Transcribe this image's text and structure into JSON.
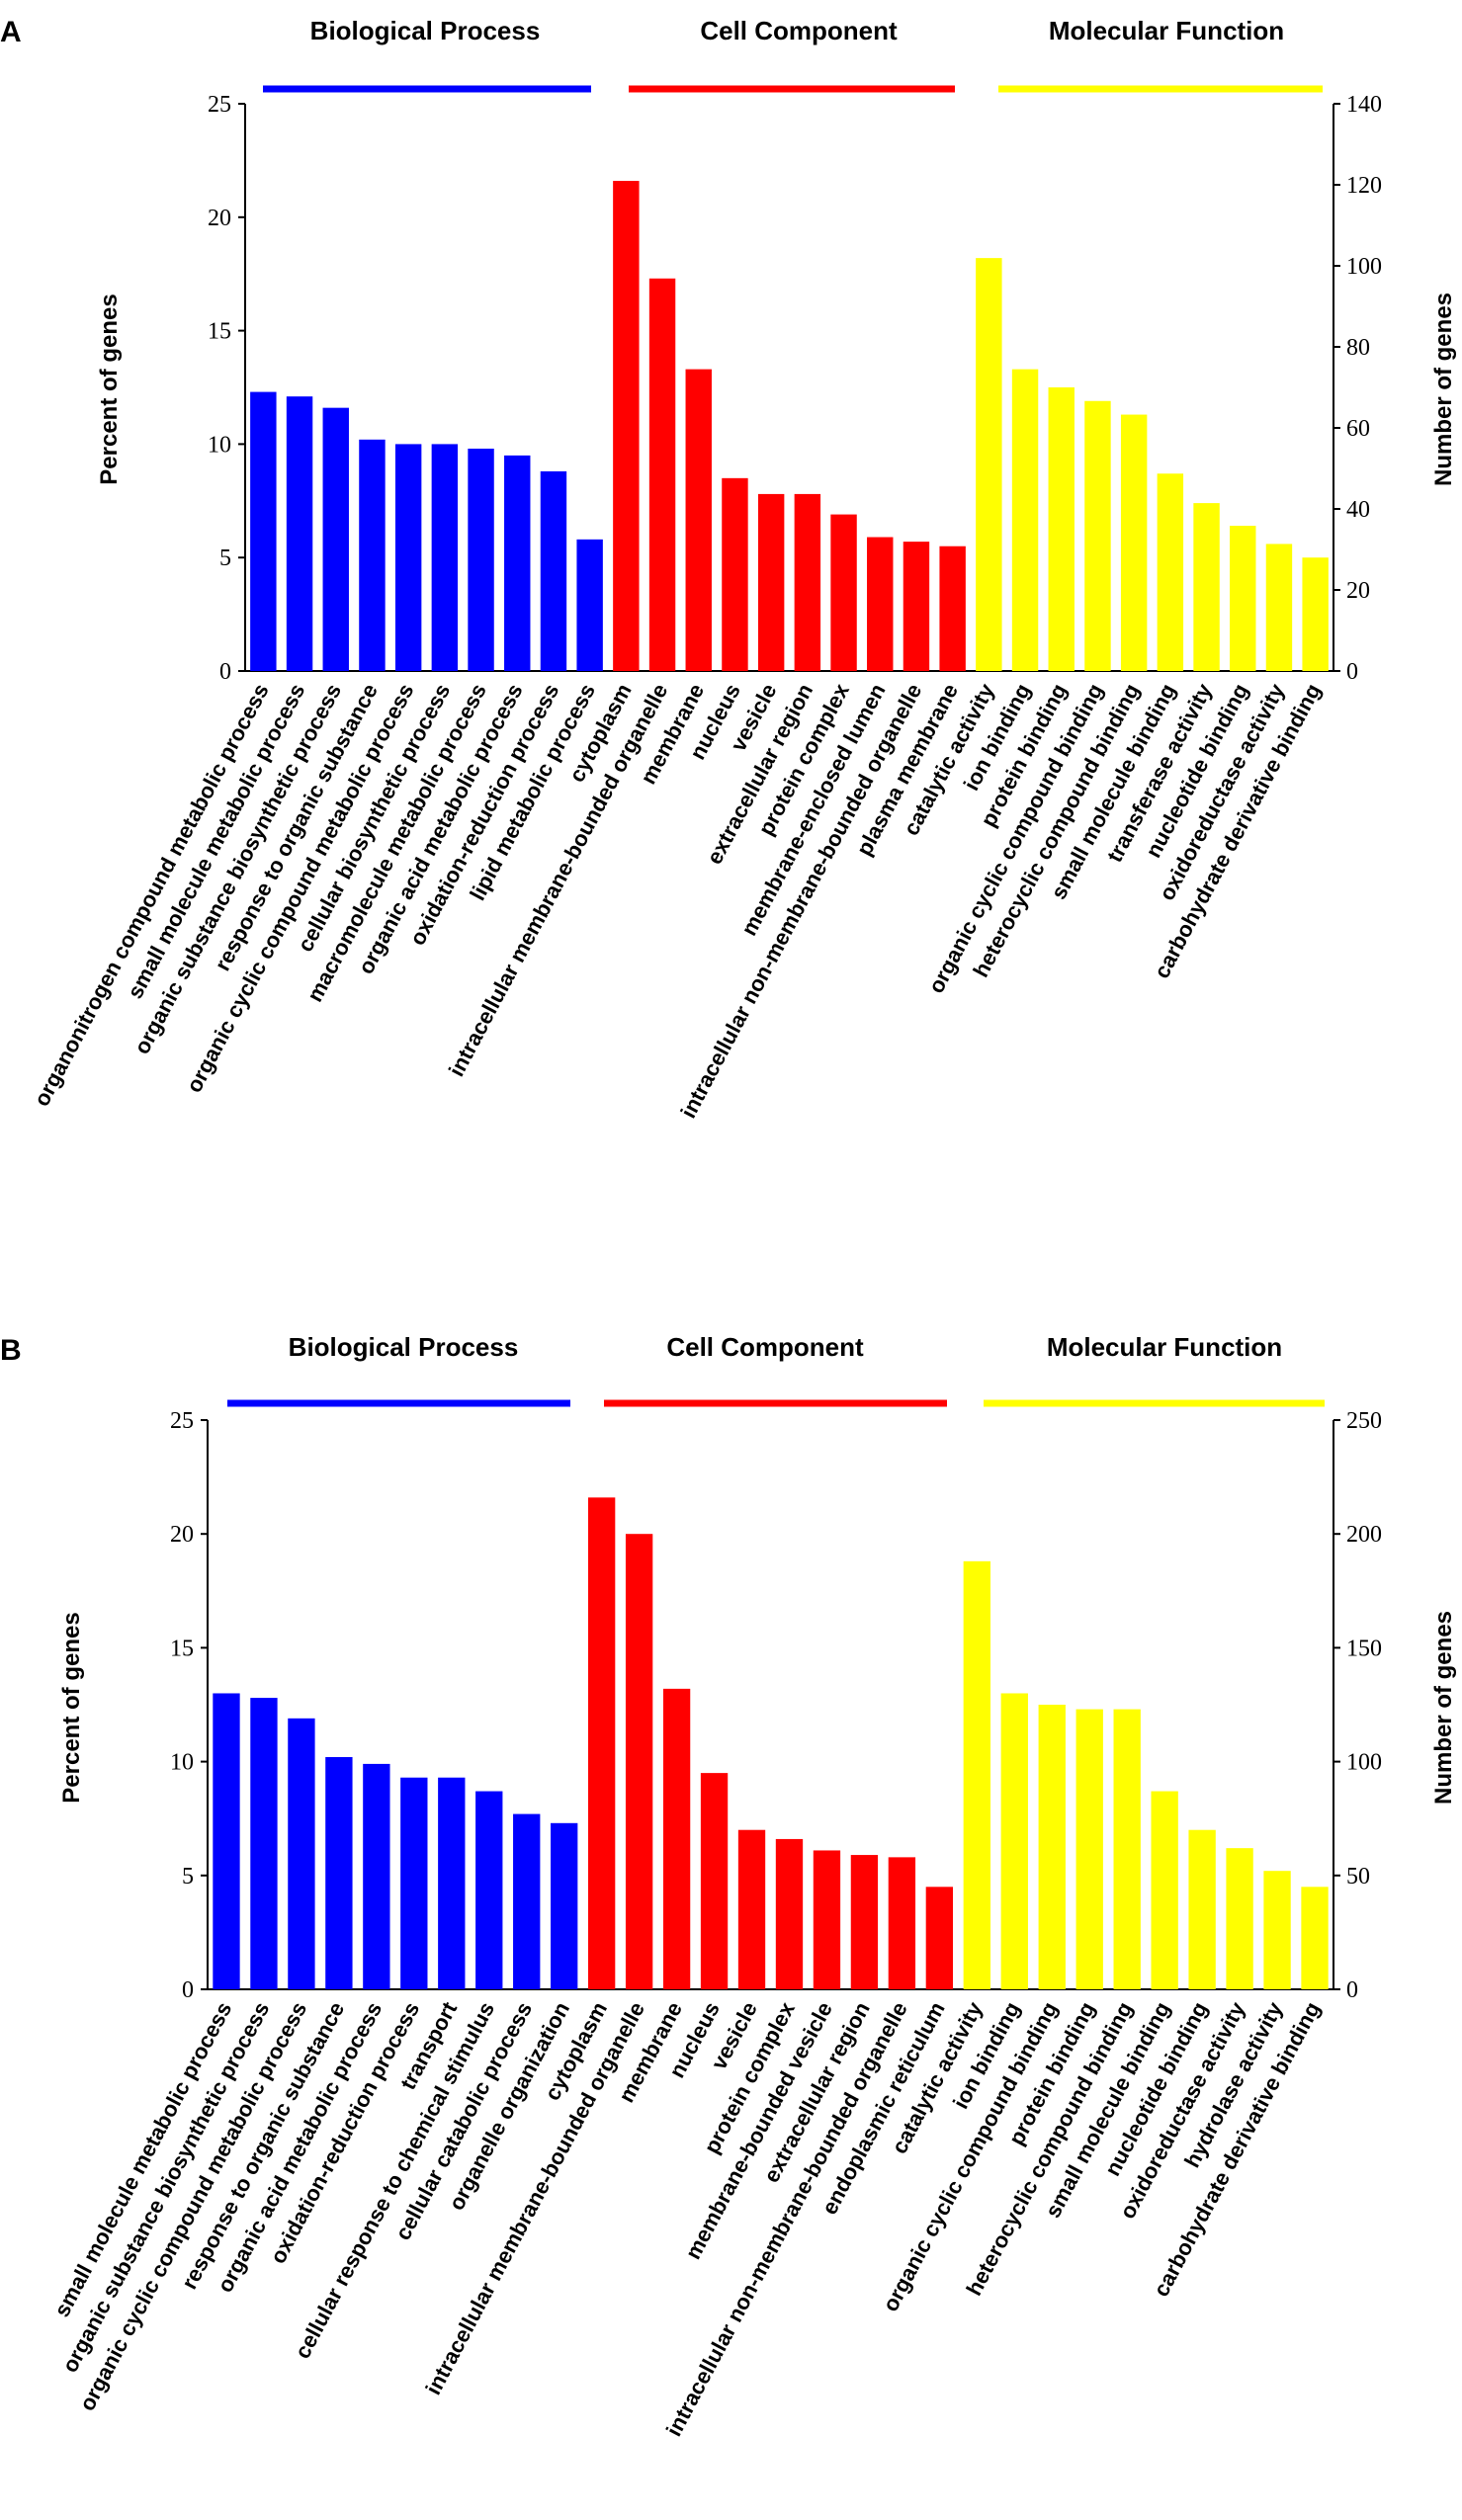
{
  "colors": {
    "biological_process": "#0000ff",
    "cell_component": "#ff0000",
    "molecular_function": "#ffff00"
  },
  "chart_data": [
    {
      "panel": "A",
      "type": "bar",
      "group_labels": [
        "Biological Process",
        "Cell Component",
        "Molecular Function"
      ],
      "ylabel_left": "Percent of genes",
      "ylabel_right": "Number of genes",
      "ylim_left": [
        0,
        25
      ],
      "ylim_right": [
        0,
        140
      ],
      "yticks_left": [
        "0",
        "5",
        "10",
        "15",
        "20",
        "25"
      ],
      "yticks_right": [
        "0",
        "20",
        "40",
        "60",
        "80",
        "100",
        "120",
        "140"
      ],
      "groups": [
        {
          "name": "Biological Process",
          "color_key": "biological_process",
          "categories": [
            "organonitrogen compound metabolic process",
            "small molecule metabolic process",
            "organic substance biosynthetic process",
            "response to organic substance",
            "organic cyclic compound metabolic process",
            "cellular biosynthetic process",
            "macromolecule metabolic process",
            "organic acid metabolic process",
            "oxidation-reduction process",
            "lipid metabolic process"
          ],
          "values": [
            12.3,
            12.1,
            11.6,
            10.2,
            10.0,
            10.0,
            9.8,
            9.5,
            8.8,
            5.8
          ]
        },
        {
          "name": "Cell Component",
          "color_key": "cell_component",
          "categories": [
            "cytoplasm",
            "intracellular membrane-bounded organelle",
            "membrane",
            "nucleus",
            "vesicle",
            "extracellular region",
            "protein complex",
            "membrane-enclosed lumen",
            "intracellular non-membrane-bounded organelle",
            "plasma membrane"
          ],
          "values": [
            21.6,
            17.3,
            13.3,
            8.5,
            7.8,
            7.8,
            6.9,
            5.9,
            5.7,
            5.5
          ]
        },
        {
          "name": "Molecular Function",
          "color_key": "molecular_function",
          "categories": [
            "catalytic activity",
            "ion binding",
            "protein binding",
            "organic cyclic compound binding",
            "heterocyclic compound binding",
            "small molecule binding",
            "transferase activity",
            "nucleotide binding",
            "oxidoreductase activity",
            "carbohydrate derivative binding"
          ],
          "values": [
            18.2,
            13.3,
            12.5,
            11.9,
            11.3,
            8.7,
            7.4,
            6.4,
            5.6,
            5.0
          ]
        }
      ]
    },
    {
      "panel": "B",
      "type": "bar",
      "group_labels": [
        "Biological Process",
        "Cell Component",
        "Molecular Function"
      ],
      "ylabel_left": "Percent of genes",
      "ylabel_right": "Number of genes",
      "ylim_left": [
        0,
        25
      ],
      "ylim_right": [
        0,
        250
      ],
      "yticks_left": [
        "0",
        "5",
        "10",
        "15",
        "20",
        "25"
      ],
      "yticks_right": [
        "0",
        "50",
        "100",
        "150",
        "200",
        "250"
      ],
      "groups": [
        {
          "name": "Biological Process",
          "color_key": "biological_process",
          "categories": [
            "small molecule metabolic process",
            "organic substance biosynthetic process",
            "organic cyclic compound metabolic process",
            "response to organic substance",
            "organic acid metabolic process",
            "oxidation-reduction process",
            "transport",
            "cellular response to chemical stimulus",
            "cellular catabolic process",
            "organelle organization"
          ],
          "values": [
            13.0,
            12.8,
            11.9,
            10.2,
            9.9,
            9.3,
            9.3,
            8.7,
            7.7,
            7.3
          ]
        },
        {
          "name": "Cell Component",
          "color_key": "cell_component",
          "categories": [
            "cytoplasm",
            "intracellular membrane-bounded organelle",
            "membrane",
            "nucleus",
            "vesicle",
            "protein complex",
            "membrane-bounded vesicle",
            "extracellular region",
            "intracellular non-membrane-bounded organelle",
            "endoplasmic reticulum"
          ],
          "values": [
            21.6,
            20.0,
            13.2,
            9.5,
            7.0,
            6.6,
            6.1,
            5.9,
            5.8,
            4.5
          ]
        },
        {
          "name": "Molecular Function",
          "color_key": "molecular_function",
          "categories": [
            "catalytic activity",
            "ion binding",
            "organic cyclic compound binding",
            "protein binding",
            "heterocyclic compound binding",
            "small molecule binding",
            "nucleotide binding",
            "oxidoreductase activity",
            "hydrolase activity",
            "carbohydrate derivative binding"
          ],
          "values": [
            18.8,
            13.0,
            12.5,
            12.3,
            12.3,
            8.7,
            7.0,
            6.2,
            5.2,
            4.5
          ]
        }
      ]
    }
  ]
}
